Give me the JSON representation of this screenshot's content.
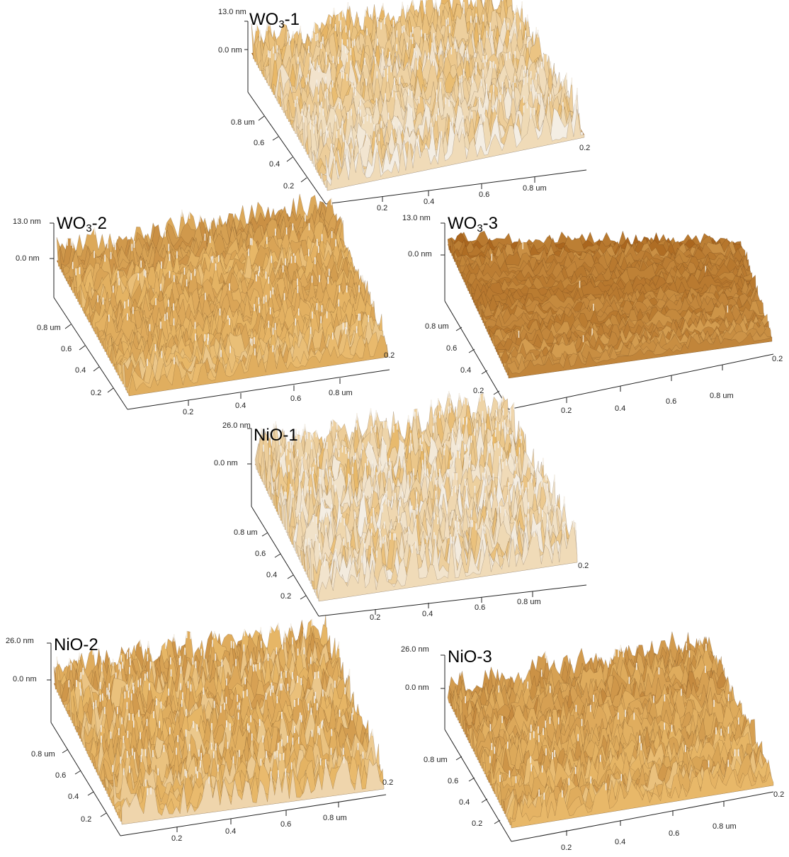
{
  "panels": [
    {
      "id": "wo3-1",
      "title_main": "WO",
      "title_sub": "3",
      "title_tail": "-1",
      "z_top": "13.0 nm",
      "z_zero": "0.0 nm",
      "y_ticks": [
        "0.8 um",
        "0.6",
        "0.4",
        "0.2"
      ],
      "x_ticks": [
        "0.2",
        "0.4",
        "0.6",
        "0.8 um"
      ],
      "corner_tick": "0.2",
      "seed": 11,
      "roughness": 0.55,
      "tone": "light"
    },
    {
      "id": "wo3-2",
      "title_main": "WO",
      "title_sub": "3",
      "title_tail": "-2",
      "z_top": "13.0 nm",
      "z_zero": "0.0 nm",
      "y_ticks": [
        "0.8 um",
        "0.6",
        "0.4",
        "0.2"
      ],
      "x_ticks": [
        "0.2",
        "0.4",
        "0.6",
        "0.8 um"
      ],
      "corner_tick": "0.2",
      "seed": 23,
      "roughness": 0.45,
      "tone": "mid"
    },
    {
      "id": "wo3-3",
      "title_main": "WO",
      "title_sub": "3",
      "title_tail": "-3",
      "z_top": "13.0 nm",
      "z_zero": "0.0 nm",
      "y_ticks": [
        "0.8 um",
        "0.6",
        "0.4",
        "0.2"
      ],
      "x_ticks": [
        "0.2",
        "0.4",
        "0.6",
        "0.8 um"
      ],
      "corner_tick": "0.2",
      "seed": 37,
      "roughness": 0.3,
      "tone": "dark"
    },
    {
      "id": "nio-1",
      "title_main": "NiO-1",
      "title_sub": "",
      "title_tail": "",
      "z_top": "26.0 nm",
      "z_zero": "0.0 nm",
      "y_ticks": [
        "0.8 um",
        "0.6",
        "0.4",
        "0.2"
      ],
      "x_ticks": [
        "0.2",
        "0.4",
        "0.6",
        "0.8 um"
      ],
      "corner_tick": "0.2",
      "seed": 51,
      "roughness": 0.6,
      "tone": "light"
    },
    {
      "id": "nio-2",
      "title_main": "NiO-2",
      "title_sub": "",
      "title_tail": "",
      "z_top": "26.0 nm",
      "z_zero": "0.0 nm",
      "y_ticks": [
        "0.8 um",
        "0.6",
        "0.4",
        "0.2"
      ],
      "x_ticks": [
        "0.2",
        "0.4",
        "0.6",
        "0.8 um"
      ],
      "corner_tick": "0.2",
      "seed": 67,
      "roughness": 0.5,
      "tone": "mid"
    },
    {
      "id": "nio-3",
      "title_main": "NiO-3",
      "title_sub": "",
      "title_tail": "",
      "z_top": "26.0 nm",
      "z_zero": "0.0 nm",
      "y_ticks": [
        "0.8 um",
        "0.6",
        "0.4",
        "0.2"
      ],
      "x_ticks": [
        "0.2",
        "0.4",
        "0.6",
        "0.8 um"
      ],
      "corner_tick": "0.2",
      "seed": 89,
      "roughness": 0.4,
      "tone": "mid"
    }
  ],
  "colors": {
    "surface_dark": "#3a1e08",
    "surface_mid": "#a8641c",
    "surface_light": "#e8b868",
    "surface_peak": "#f4eee4",
    "axis": "#222222"
  }
}
